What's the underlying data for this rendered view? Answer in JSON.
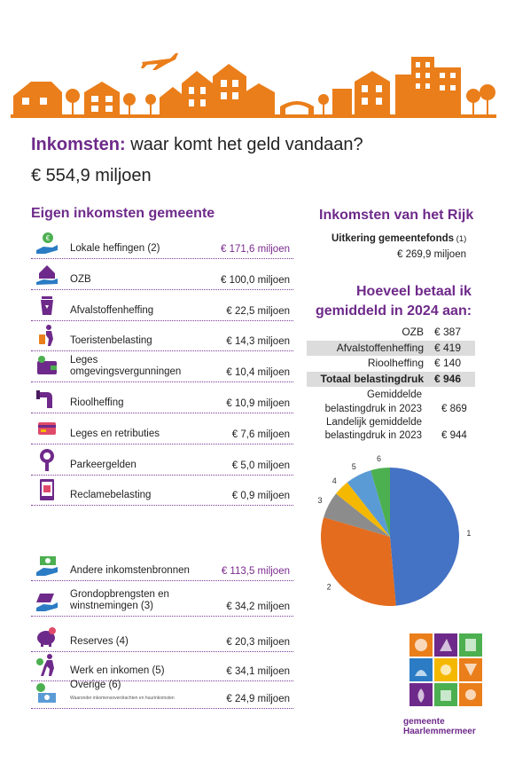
{
  "header": {
    "title_highlight": "Inkomsten:",
    "title_rest": " waar komt het geld vandaan?",
    "total": "€ 554,9 miljoen"
  },
  "eigen": {
    "heading": "Eigen inkomsten gemeente",
    "items": [
      {
        "label": "Lokale heffingen (2)",
        "value": "€ 171,6 miljoen",
        "icon": "hand-coin-icon"
      },
      {
        "label": "OZB",
        "value": "€ 100,0 miljoen",
        "icon": "house-hand-icon"
      },
      {
        "label": "Afvalstoffenheffing",
        "value": "€ 22,5 miljoen",
        "icon": "trash-bin-icon"
      },
      {
        "label": "Toeristenbelasting",
        "value": "€ 14,3 miljoen",
        "icon": "traveler-icon"
      },
      {
        "label": "Leges",
        "label2": "omgevingsvergunningen",
        "value": "€ 10,4 miljoen",
        "icon": "wallet-icon"
      },
      {
        "label": "Rioolheffing",
        "value": "€ 10,9 miljoen",
        "icon": "pipe-icon"
      },
      {
        "label": "Leges en retributies",
        "value": "€ 7,6 miljoen",
        "icon": "card-icon"
      },
      {
        "label": "Parkeergelden",
        "value": "€ 5,0 miljoen",
        "icon": "parking-meter-icon"
      },
      {
        "label": "Reclamebelasting",
        "value": "€ 0,9 miljoen",
        "icon": "billboard-icon"
      }
    ]
  },
  "andere": {
    "items": [
      {
        "label": "Andere inkomstenbronnen",
        "value": "€ 113,5 miljoen",
        "icon": "hand-cash-icon"
      },
      {
        "label": "Grondopbrengsten en",
        "label2": "winstnemingen (3)",
        "value": "€ 34,2 miljoen",
        "icon": "land-hand-icon"
      },
      {
        "label": "Reserves (4)",
        "value": "€ 20,3 miljoen",
        "icon": "piggy-bank-icon"
      },
      {
        "label": "Werk en inkomen (5)",
        "value": "€ 34,1 miljoen",
        "icon": "walking-person-icon"
      },
      {
        "label": "Overige (6)",
        "note": "Waaronder inkomensoverdrachten en huurinkomsten",
        "value": "€ 24,9 miljoen",
        "icon": "money-icon"
      }
    ]
  },
  "rijk": {
    "heading": "Inkomsten van het Rijk",
    "label": "Uitkering gemeentefonds",
    "label_suffix": " (1)",
    "value": "€ 269,9 miljoen"
  },
  "betaal": {
    "heading1": "Hoeveel betaal ik",
    "heading2": "gemiddeld in 2024 aan:",
    "rows": [
      {
        "label": "OZB",
        "value": "€ 387"
      },
      {
        "label": "Afvalstoffenheffing",
        "value": "€ 419"
      },
      {
        "label": "Rioolheffing",
        "value": "€ 140"
      },
      {
        "label": "Totaal belastingdruk",
        "value": "€ 946"
      }
    ],
    "gem_label1": "Gemiddelde",
    "gem_label2": "belastingdruk in 2023",
    "gem_value": "€ 869",
    "land_label1": "Landelijk gemiddelde",
    "land_label2": "belastingdruk in 2023",
    "land_value": "€ 944"
  },
  "chart_data": {
    "type": "pie",
    "categories": [
      "1",
      "2",
      "3",
      "4",
      "5",
      "6"
    ],
    "values": [
      269.9,
      171.6,
      34.2,
      20.3,
      34.1,
      24.9
    ],
    "colors": [
      "#4472c4",
      "#e46c1f",
      "#8c8c8c",
      "#f5b800",
      "#5b9bd5",
      "#4caf50"
    ]
  },
  "logo": {
    "line1": "gemeente",
    "line2": "Haarlemmermeer"
  },
  "colors": {
    "accent": "#6e2a8a",
    "orange": "#ea7e1a",
    "dots": "#7a3a96"
  }
}
